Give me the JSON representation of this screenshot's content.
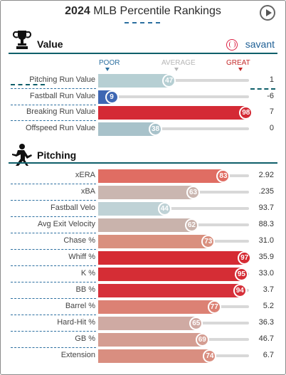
{
  "header": {
    "year": "2024",
    "title": "MLB Percentile Rankings"
  },
  "sections": [
    {
      "title": "Value",
      "icon": "trophy-icon",
      "brand": "savant",
      "scale": {
        "poor": "POOR",
        "average": "AVERAGE",
        "great": "GREAT"
      },
      "rows": [
        {
          "label": "Pitching Run Value",
          "percentile": 47,
          "value": "1",
          "color": "#b6cfd3"
        },
        {
          "label": "Fastball Run Value",
          "percentile": 9,
          "value": "-6",
          "color": "#3e67b3"
        },
        {
          "label": "Breaking Run Value",
          "percentile": 98,
          "value": "7",
          "color": "#d42a35"
        },
        {
          "label": "Offspeed Run Value",
          "percentile": 38,
          "value": "0",
          "color": "#a8c2ca"
        }
      ]
    },
    {
      "title": "Pitching",
      "icon": "pitcher-icon",
      "rows": [
        {
          "label": "xERA",
          "percentile": 83,
          "value": "2.92",
          "color": "#e06d63"
        },
        {
          "label": "xBA",
          "percentile": 63,
          "value": ".235",
          "color": "#cab6b0"
        },
        {
          "label": "Fastball Velo",
          "percentile": 44,
          "value": "93.7",
          "color": "#bfd2d6"
        },
        {
          "label": "Avg Exit Velocity",
          "percentile": 62,
          "value": "88.3",
          "color": "#c9b3ac"
        },
        {
          "label": "Chase %",
          "percentile": 73,
          "value": "31.0",
          "color": "#d9907f"
        },
        {
          "label": "Whiff %",
          "percentile": 97,
          "value": "35.9",
          "color": "#d52b33"
        },
        {
          "label": "K %",
          "percentile": 95,
          "value": "33.0",
          "color": "#d52d35"
        },
        {
          "label": "BB %",
          "percentile": 94,
          "value": "3.7",
          "color": "#d6303a"
        },
        {
          "label": "Barrel %",
          "percentile": 77,
          "value": "5.2",
          "color": "#dc8174"
        },
        {
          "label": "Hard-Hit %",
          "percentile": 65,
          "value": "36.3",
          "color": "#cfaaa3"
        },
        {
          "label": "GB %",
          "percentile": 69,
          "value": "46.7",
          "color": "#d49d92"
        },
        {
          "label": "Extension",
          "percentile": 74,
          "value": "6.7",
          "color": "#d98e80"
        }
      ]
    }
  ]
}
